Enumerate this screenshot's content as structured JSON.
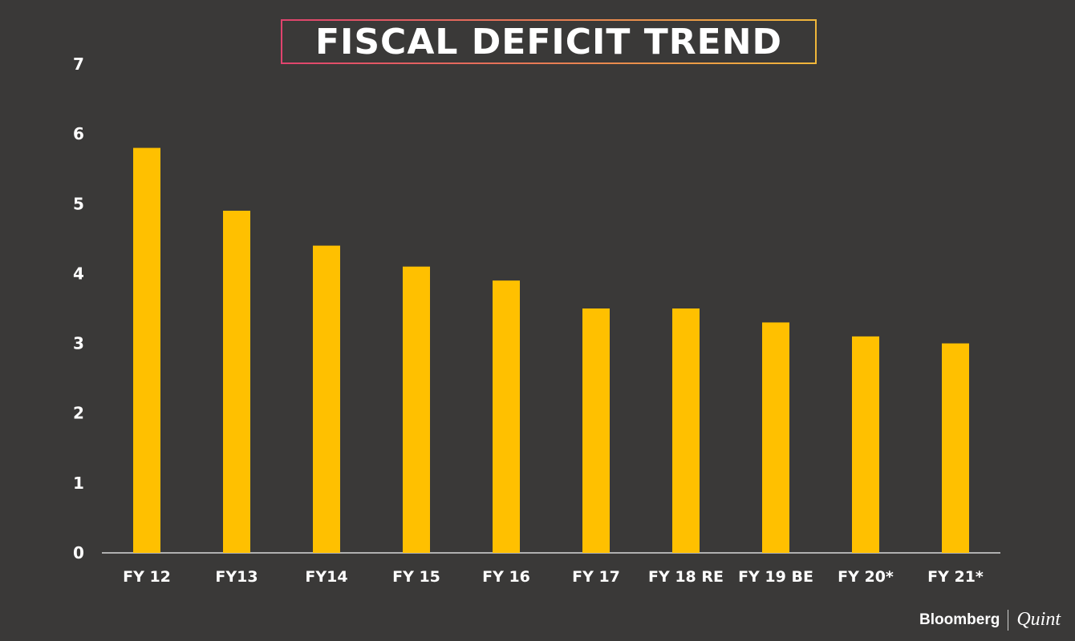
{
  "title": "FISCAL DEFICIT TREND",
  "brand": {
    "name": "Bloomberg",
    "sub": "Quint"
  },
  "colors": {
    "background": "#3a3938",
    "bar": "#ffc000",
    "axis": "#d8d8d8",
    "text": "#ffffff"
  },
  "chart_data": {
    "type": "bar",
    "title": "FISCAL DEFICIT TREND",
    "xlabel": "",
    "ylabel": "",
    "categories": [
      "FY 12",
      "FY13",
      "FY14",
      "FY 15",
      "FY 16",
      "FY 17",
      "FY 18 RE",
      "FY 19 BE",
      "FY 20*",
      "FY 21*"
    ],
    "values": [
      5.8,
      4.9,
      4.4,
      4.1,
      3.9,
      3.5,
      3.5,
      3.3,
      3.1,
      3.0
    ],
    "ylim": [
      0,
      7
    ],
    "yticks": [
      "0",
      "1",
      "2",
      "3",
      "4",
      "5",
      "6",
      "7"
    ],
    "grid": false,
    "legend": "none"
  }
}
